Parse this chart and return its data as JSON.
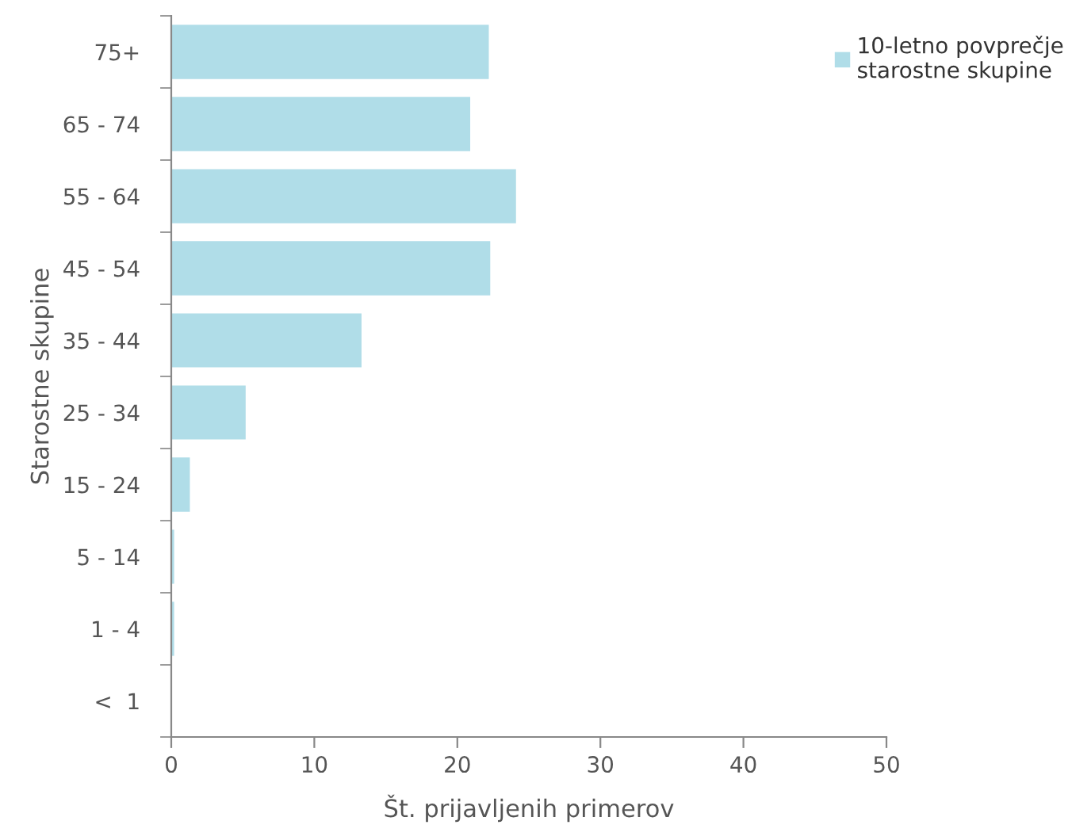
{
  "chart_data": {
    "type": "bar",
    "orientation": "horizontal",
    "xlabel": "Št. prijavljenih primerov",
    "ylabel": "Starostne skupine",
    "categories": [
      "75+",
      "65 - 74",
      "55 - 64",
      "45 - 54",
      "35 - 44",
      "25 - 34",
      "15 - 24",
      "5 - 14",
      "1 - 4",
      "<  1"
    ],
    "series": [
      {
        "name": "10-letno povprečje\nstarostne skupine",
        "color": "#b0dde8",
        "values": [
          22.2,
          20.9,
          24.1,
          22.3,
          13.3,
          5.2,
          1.3,
          0.2,
          0.2,
          0
        ]
      }
    ],
    "xlim": [
      0,
      50
    ],
    "xticks": [
      0,
      10,
      20,
      30,
      40,
      50
    ],
    "grid": false,
    "legend": "top right"
  }
}
